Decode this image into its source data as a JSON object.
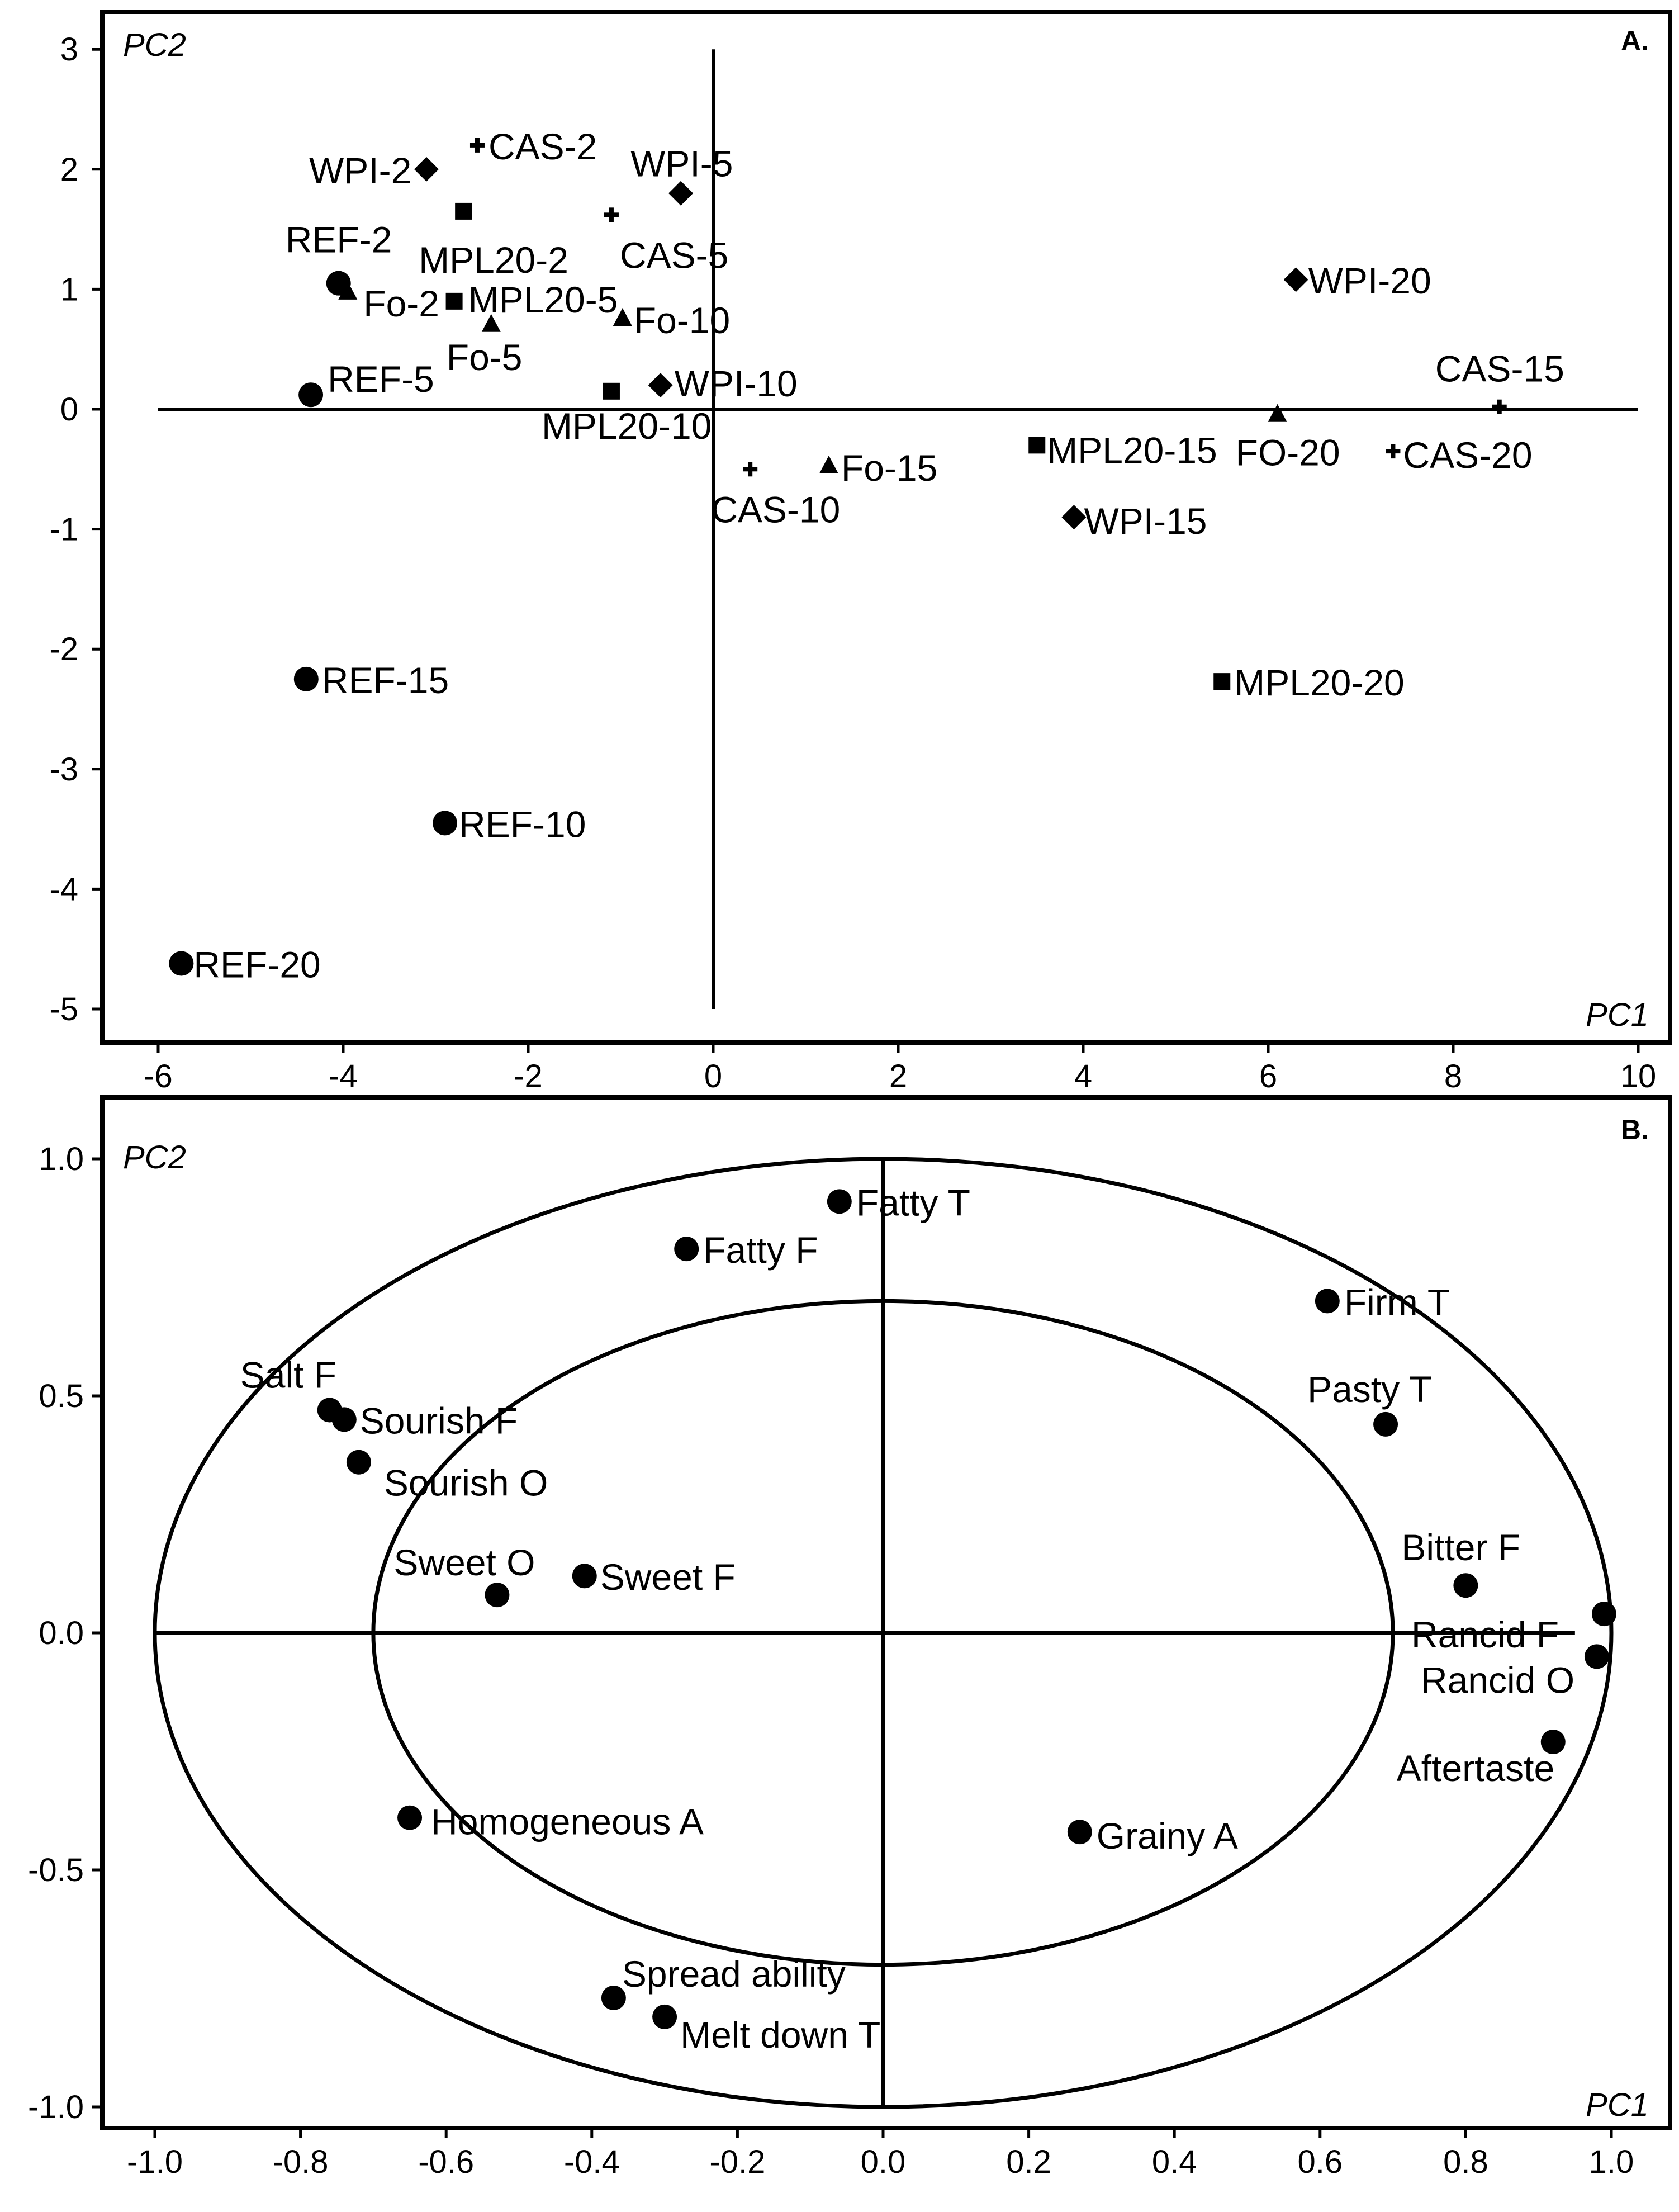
{
  "chart_data": [
    {
      "type": "scatter",
      "panel_label": "A.",
      "xlabel": "PC1",
      "ylabel": "PC2",
      "xlim": [
        -6.5,
        10
      ],
      "ylim": [
        -5.3,
        3.2
      ],
      "xticks": [
        -6,
        -4,
        -2,
        0,
        2,
        4,
        6,
        8,
        10
      ],
      "yticks": [
        -5,
        -4,
        -3,
        -2,
        -1,
        0,
        1,
        2,
        3
      ],
      "cross_lines": {
        "h": {
          "y": 0,
          "x_from": -6,
          "x_to": 10
        },
        "v": {
          "x": 0,
          "y_from": -5,
          "y_to": 3
        }
      },
      "grid": false,
      "points": [
        {
          "label": "WPI-2",
          "x": -3.1,
          "y": 2.0,
          "marker": "diamond"
        },
        {
          "label": "CAS-2",
          "x": -2.55,
          "y": 2.2,
          "marker": "plus"
        },
        {
          "label": "MPL20-2",
          "x": -2.7,
          "y": 1.65,
          "marker": "square"
        },
        {
          "label": "CAS-5",
          "x": -1.1,
          "y": 1.62,
          "marker": "plus"
        },
        {
          "label": "WPI-5",
          "x": -0.35,
          "y": 1.8,
          "marker": "diamond"
        },
        {
          "label": "REF-2",
          "x": -4.05,
          "y": 1.05,
          "marker": "circle"
        },
        {
          "label": "Fo-2",
          "x": -3.95,
          "y": 0.97,
          "marker": "triangle"
        },
        {
          "label": "MPL20-5",
          "x": -2.8,
          "y": 0.9,
          "marker": "square"
        },
        {
          "label": "Fo-5",
          "x": -2.4,
          "y": 0.7,
          "marker": "triangle"
        },
        {
          "label": "Fo-10",
          "x": -0.98,
          "y": 0.75,
          "marker": "triangle"
        },
        {
          "label": "REF-5",
          "x": -4.35,
          "y": 0.12,
          "marker": "circle"
        },
        {
          "label": "MPL20-10",
          "x": -1.1,
          "y": 0.15,
          "marker": "square"
        },
        {
          "label": "WPI-10",
          "x": -0.57,
          "y": 0.2,
          "marker": "diamond"
        },
        {
          "label": "CAS-10",
          "x": 0.4,
          "y": -0.5,
          "marker": "plus"
        },
        {
          "label": "Fo-15",
          "x": 1.25,
          "y": -0.48,
          "marker": "triangle"
        },
        {
          "label": "WPI-20",
          "x": 6.3,
          "y": 1.08,
          "marker": "diamond"
        },
        {
          "label": "CAS-15",
          "x": 8.5,
          "y": 0.02,
          "marker": "plus"
        },
        {
          "label": "FO-20",
          "x": 6.1,
          "y": -0.05,
          "marker": "triangle"
        },
        {
          "label": "MPL20-15",
          "x": 3.5,
          "y": -0.3,
          "marker": "square"
        },
        {
          "label": "CAS-20",
          "x": 7.35,
          "y": -0.35,
          "marker": "plus"
        },
        {
          "label": "WPI-15",
          "x": 3.9,
          "y": -0.9,
          "marker": "diamond"
        },
        {
          "label": "REF-15",
          "x": -4.4,
          "y": -2.25,
          "marker": "circle"
        },
        {
          "label": "MPL20-20",
          "x": 5.5,
          "y": -2.27,
          "marker": "square"
        },
        {
          "label": "REF-10",
          "x": -2.9,
          "y": -3.45,
          "marker": "circle"
        },
        {
          "label": "REF-20",
          "x": -5.75,
          "y": -4.62,
          "marker": "circle"
        }
      ]
    },
    {
      "type": "scatter",
      "panel_label": "B.",
      "xlabel": "PC1",
      "ylabel": "PC2",
      "xlim": [
        -1.1,
        1.05
      ],
      "ylim": [
        -1.05,
        1.05
      ],
      "xticks": [
        "-1.0",
        "-0.8",
        "-0.6",
        "-0.4",
        "-0.2",
        "0.0",
        "0.2",
        "0.4",
        "0.6",
        "0.8",
        "1.0"
      ],
      "yticks": [
        "-1.0",
        "-0.5",
        "0.0",
        "0.5",
        "1.0"
      ],
      "cross_lines": {
        "h": {
          "y": 0,
          "x_from": -1,
          "x_to": 0.95
        },
        "v": {
          "x": 0,
          "y_from": -1,
          "y_to": 1
        }
      },
      "circles": [
        1.0,
        0.7
      ],
      "grid": false,
      "points": [
        {
          "label": "Fatty T",
          "x": -0.06,
          "y": 0.91
        },
        {
          "label": "Fatty F",
          "x": -0.27,
          "y": 0.81
        },
        {
          "label": "Firm T",
          "x": 0.61,
          "y": 0.7
        },
        {
          "label": "Salt F",
          "x": -0.76,
          "y": 0.47
        },
        {
          "label": "Sourish F",
          "x": -0.74,
          "y": 0.45
        },
        {
          "label": "Pasty T",
          "x": 0.69,
          "y": 0.44
        },
        {
          "label": "Sourish O",
          "x": -0.72,
          "y": 0.36
        },
        {
          "label": "Sweet O",
          "x": -0.53,
          "y": 0.08
        },
        {
          "label": "Sweet F",
          "x": -0.41,
          "y": 0.12
        },
        {
          "label": "Bitter F",
          "x": 0.8,
          "y": 0.1
        },
        {
          "label": "Rancid F",
          "x": 0.99,
          "y": 0.04
        },
        {
          "label": "Rancid O",
          "x": 0.98,
          "y": -0.05
        },
        {
          "label": "Aftertaste",
          "x": 0.92,
          "y": -0.23
        },
        {
          "label": "Homogeneous A",
          "x": -0.65,
          "y": -0.39
        },
        {
          "label": "Grainy A",
          "x": 0.27,
          "y": -0.42
        },
        {
          "label": "Spread ability",
          "x": -0.37,
          "y": -0.77
        },
        {
          "label": "Melt down T",
          "x": -0.3,
          "y": -0.81
        }
      ]
    }
  ]
}
